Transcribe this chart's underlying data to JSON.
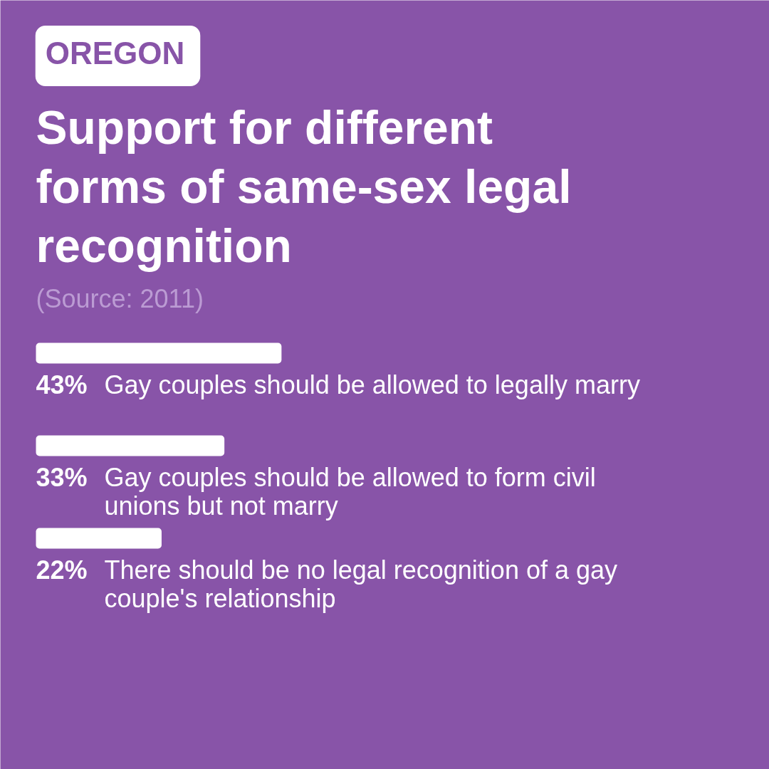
{
  "chart_data": {
    "type": "bar",
    "orientation": "horizontal",
    "title": "Support for different forms of same-sex legal recognition",
    "annotations": [
      "OREGON",
      "(Source: 2011)"
    ],
    "categories": [
      "Gay couples should be allowed to legally marry",
      "Gay couples should be allowed to form civil unions but not marry",
      "There should be no legal recognition of a gay couple's relationship"
    ],
    "values": [
      43,
      33,
      22
    ],
    "value_labels": [
      "43%",
      "33%",
      "22%"
    ],
    "color": "#ffffff"
  }
}
